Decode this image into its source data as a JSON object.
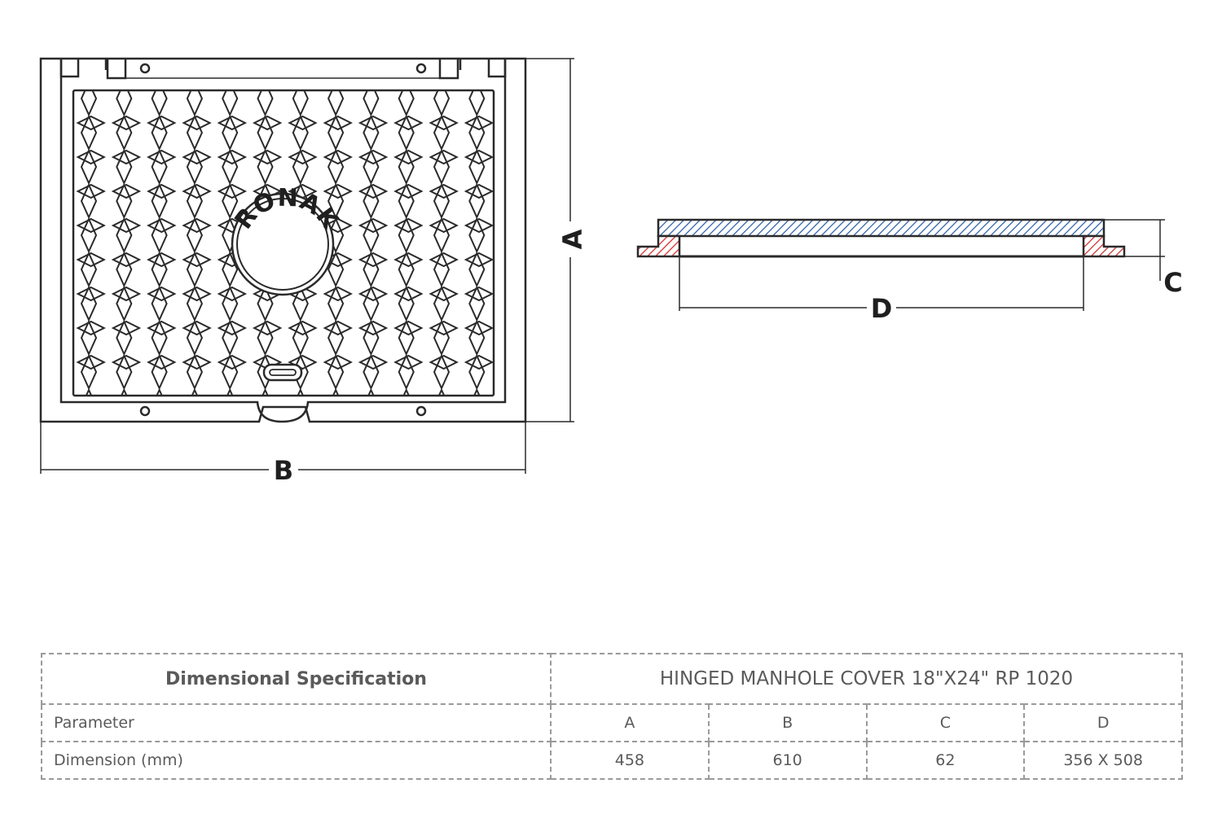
{
  "drawing": {
    "plan_view": {
      "logo_text": "RONAK",
      "dim_a_label": "A",
      "dim_b_label": "B"
    },
    "section_view": {
      "dim_c_label": "C",
      "dim_d_label": "D"
    },
    "colors": {
      "outline": "#2a2a2a",
      "cover_hatch": "#2b5fa8",
      "frame_hatch": "#d62a2a",
      "table_border": "#9a9a9a",
      "table_text": "#5a5a5a"
    }
  },
  "table": {
    "spec_title": "Dimensional Specification",
    "product_title": "HINGED MANHOLE COVER 18\"X24\" RP 1020",
    "param_label": "Parameter",
    "dimension_label": "Dimension (mm)",
    "parameters": [
      "A",
      "B",
      "C",
      "D"
    ],
    "values": [
      "458",
      "610",
      "62",
      "356 X 508"
    ]
  }
}
